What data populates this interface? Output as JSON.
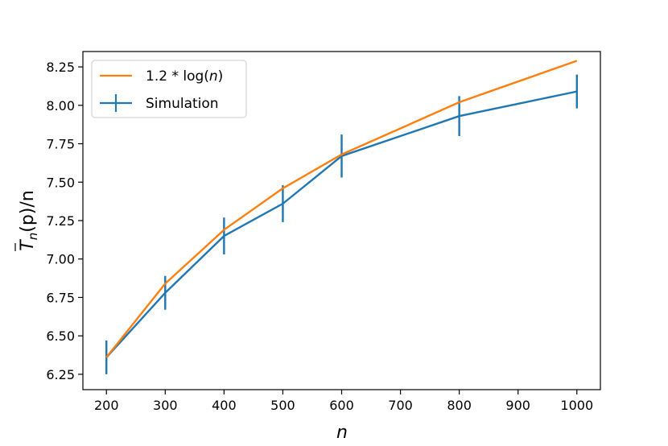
{
  "chart_data": {
    "type": "line",
    "xlabel": "n",
    "ylabel_main": "T",
    "ylabel_sub": "n",
    "ylabel_tail": "(p)/n",
    "xlim": [
      160,
      1040
    ],
    "ylim": [
      6.15,
      8.35
    ],
    "x_ticks": [
      200,
      300,
      400,
      500,
      600,
      700,
      800,
      900,
      1000
    ],
    "y_ticks": [
      6.25,
      6.5,
      6.75,
      7.0,
      7.25,
      7.5,
      7.75,
      8.0,
      8.25
    ],
    "x_tick_labels": [
      "200",
      "300",
      "400",
      "500",
      "600",
      "700",
      "800",
      "900",
      "1000"
    ],
    "y_tick_labels": [
      "6.25",
      "6.50",
      "6.75",
      "7.00",
      "7.25",
      "7.50",
      "7.75",
      "8.00",
      "8.25"
    ],
    "grid": false,
    "legend_position": "top-left",
    "series": [
      {
        "name": "1.2 * log(n)",
        "legend_prefix": "1.2 * log(",
        "legend_var": "n",
        "legend_suffix": ")",
        "color": "#ff7f0e",
        "x": [
          200,
          300,
          400,
          500,
          600,
          800,
          1000
        ],
        "y": [
          6.36,
          6.84,
          7.19,
          7.46,
          7.68,
          8.02,
          8.29
        ]
      },
      {
        "name": "Simulation",
        "color": "#1f77b4",
        "x": [
          200,
          300,
          400,
          500,
          600,
          800,
          1000
        ],
        "y": [
          6.36,
          6.78,
          7.15,
          7.36,
          7.67,
          7.93,
          8.09
        ],
        "yerr": [
          0.11,
          0.11,
          0.12,
          0.12,
          0.14,
          0.13,
          0.11
        ]
      }
    ]
  }
}
